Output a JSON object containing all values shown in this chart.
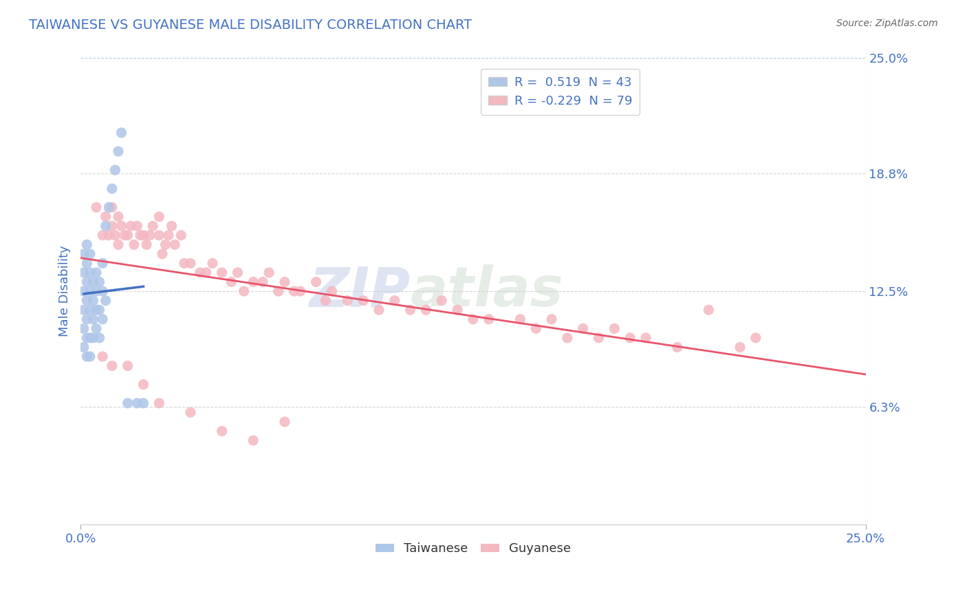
{
  "title": "TAIWANESE VS GUYANESE MALE DISABILITY CORRELATION CHART",
  "source": "Source: ZipAtlas.com",
  "ylabel": "Male Disability",
  "xlim": [
    0.0,
    0.25
  ],
  "ylim": [
    0.0,
    0.25
  ],
  "taiwanese_color": "#aec6e8",
  "guyanese_color": "#f4b8c1",
  "taiwanese_line_color": "#4472c4",
  "guyanese_line_color": "#e8546a",
  "title_color": "#4472c4",
  "tick_label_color": "#4472c4",
  "R_taiwanese": 0.519,
  "N_taiwanese": 43,
  "R_guyanese": -0.229,
  "N_guyanese": 79,
  "watermark_text": "ZIP",
  "watermark_text2": "atlas",
  "taiwanese_x": [
    0.001,
    0.001,
    0.001,
    0.001,
    0.001,
    0.001,
    0.002,
    0.002,
    0.002,
    0.002,
    0.002,
    0.002,
    0.002,
    0.003,
    0.003,
    0.003,
    0.003,
    0.003,
    0.003,
    0.004,
    0.004,
    0.004,
    0.004,
    0.005,
    0.005,
    0.005,
    0.005,
    0.006,
    0.006,
    0.006,
    0.007,
    0.007,
    0.007,
    0.008,
    0.008,
    0.009,
    0.01,
    0.011,
    0.012,
    0.013,
    0.015,
    0.018,
    0.02
  ],
  "taiwanese_y": [
    0.095,
    0.105,
    0.115,
    0.125,
    0.135,
    0.145,
    0.09,
    0.1,
    0.11,
    0.12,
    0.13,
    0.14,
    0.15,
    0.09,
    0.1,
    0.115,
    0.125,
    0.135,
    0.145,
    0.1,
    0.11,
    0.12,
    0.13,
    0.105,
    0.115,
    0.125,
    0.135,
    0.1,
    0.115,
    0.13,
    0.11,
    0.125,
    0.14,
    0.12,
    0.16,
    0.17,
    0.18,
    0.19,
    0.2,
    0.21,
    0.065,
    0.065,
    0.065
  ],
  "guyanese_x": [
    0.005,
    0.007,
    0.008,
    0.009,
    0.01,
    0.01,
    0.011,
    0.012,
    0.012,
    0.013,
    0.014,
    0.015,
    0.016,
    0.017,
    0.018,
    0.019,
    0.02,
    0.021,
    0.022,
    0.023,
    0.025,
    0.025,
    0.026,
    0.027,
    0.028,
    0.029,
    0.03,
    0.032,
    0.033,
    0.035,
    0.038,
    0.04,
    0.042,
    0.045,
    0.048,
    0.05,
    0.052,
    0.055,
    0.058,
    0.06,
    0.063,
    0.065,
    0.068,
    0.07,
    0.075,
    0.078,
    0.08,
    0.085,
    0.09,
    0.095,
    0.1,
    0.105,
    0.11,
    0.115,
    0.12,
    0.125,
    0.13,
    0.14,
    0.145,
    0.15,
    0.155,
    0.16,
    0.165,
    0.17,
    0.175,
    0.18,
    0.19,
    0.2,
    0.21,
    0.215,
    0.007,
    0.01,
    0.015,
    0.02,
    0.025,
    0.035,
    0.045,
    0.055,
    0.065
  ],
  "guyanese_y": [
    0.17,
    0.155,
    0.165,
    0.155,
    0.17,
    0.16,
    0.155,
    0.165,
    0.15,
    0.16,
    0.155,
    0.155,
    0.16,
    0.15,
    0.16,
    0.155,
    0.155,
    0.15,
    0.155,
    0.16,
    0.155,
    0.165,
    0.145,
    0.15,
    0.155,
    0.16,
    0.15,
    0.155,
    0.14,
    0.14,
    0.135,
    0.135,
    0.14,
    0.135,
    0.13,
    0.135,
    0.125,
    0.13,
    0.13,
    0.135,
    0.125,
    0.13,
    0.125,
    0.125,
    0.13,
    0.12,
    0.125,
    0.12,
    0.12,
    0.115,
    0.12,
    0.115,
    0.115,
    0.12,
    0.115,
    0.11,
    0.11,
    0.11,
    0.105,
    0.11,
    0.1,
    0.105,
    0.1,
    0.105,
    0.1,
    0.1,
    0.095,
    0.115,
    0.095,
    0.1,
    0.09,
    0.085,
    0.085,
    0.075,
    0.065,
    0.06,
    0.05,
    0.045,
    0.055
  ]
}
